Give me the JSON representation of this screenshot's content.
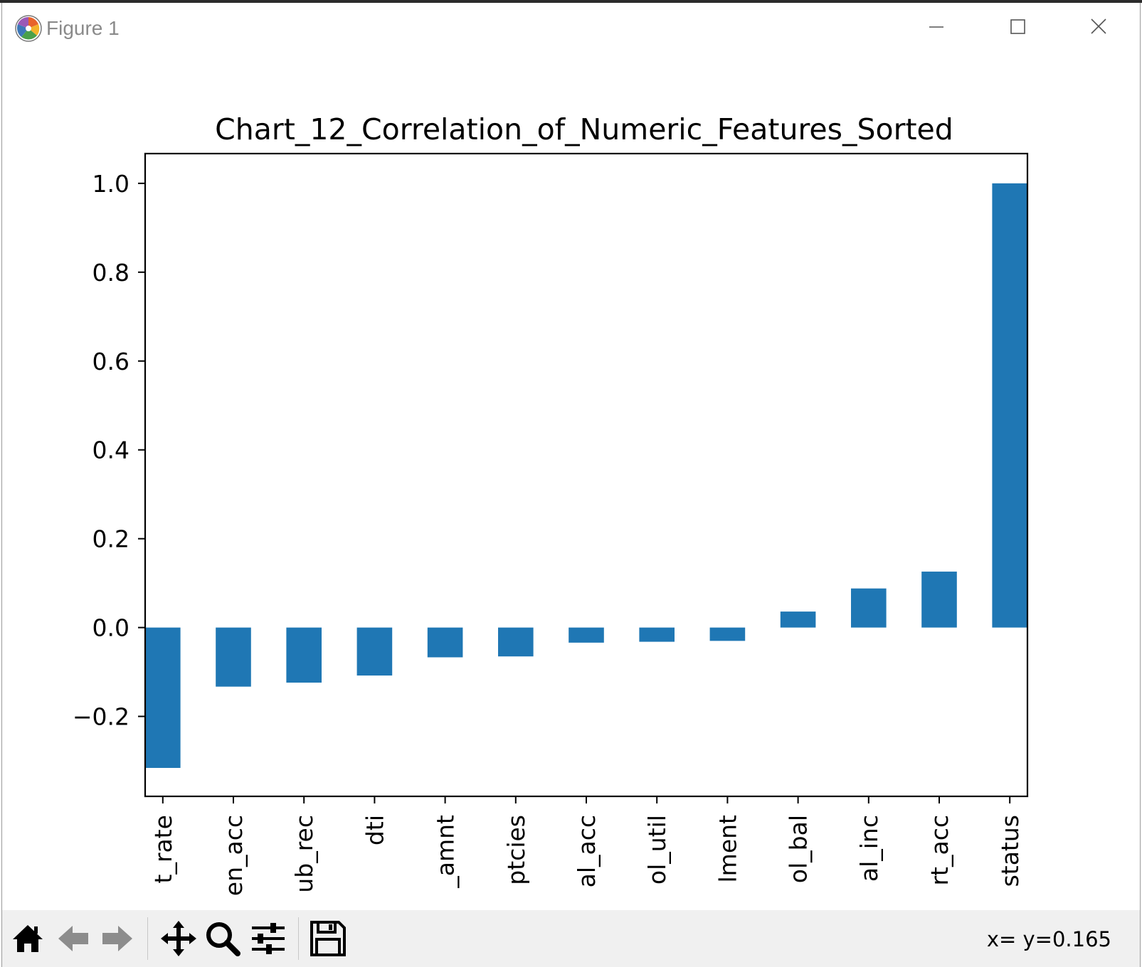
{
  "window": {
    "title": "Figure 1",
    "app_icon": "matplotlib-logo-icon",
    "controls": {
      "minimize": "minimize-icon",
      "maximize": "maximize-icon",
      "close": "close-icon"
    }
  },
  "toolbar": {
    "buttons": [
      {
        "name": "home",
        "icon": "home-icon"
      },
      {
        "name": "back",
        "icon": "back-arrow-icon"
      },
      {
        "name": "forward",
        "icon": "forward-arrow-icon"
      },
      {
        "name": "pan",
        "icon": "move-icon"
      },
      {
        "name": "zoom",
        "icon": "zoom-icon"
      },
      {
        "name": "configure",
        "icon": "sliders-icon"
      },
      {
        "name": "save",
        "icon": "save-icon"
      }
    ],
    "coordinates": "x= y=0.165"
  },
  "chart_data": {
    "type": "bar",
    "title": "Chart_12_Correlation_of_Numeric_Features_Sorted",
    "categories": [
      "t_rate",
      "en_acc",
      "ub_rec",
      "dti",
      "_amnt",
      "ptcies",
      "al_acc",
      "ol_util",
      "lment",
      "ol_bal",
      "al_inc",
      "rt_acc",
      "status"
    ],
    "values": [
      -0.316,
      -0.133,
      -0.124,
      -0.108,
      -0.067,
      -0.065,
      -0.034,
      -0.032,
      -0.03,
      0.036,
      0.088,
      0.126,
      1.0
    ],
    "ylim": [
      -0.38,
      1.067
    ],
    "yticks": [
      -0.2,
      0.0,
      0.2,
      0.4,
      0.6,
      0.8,
      1.0
    ],
    "ytick_labels": [
      "−0.2",
      "0.0",
      "0.2",
      "0.4",
      "0.6",
      "0.8",
      "1.0"
    ],
    "bar_color": "#1f77b4",
    "grid": false,
    "xlabel": "",
    "ylabel": ""
  }
}
